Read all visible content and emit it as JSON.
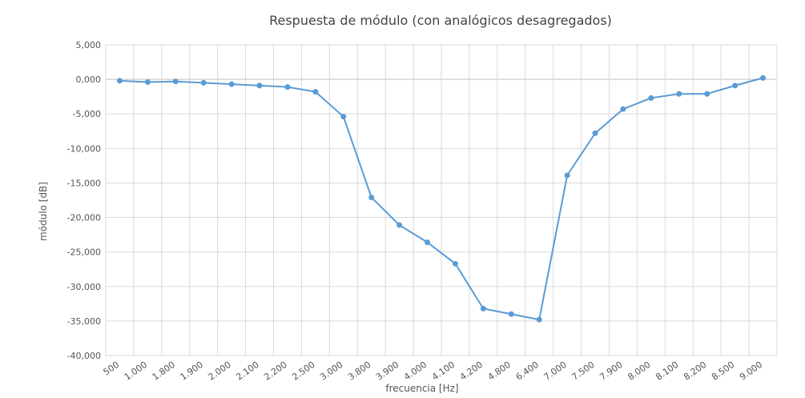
{
  "chart_data": {
    "type": "line",
    "title": "Respuesta de módulo (con analógicos desagregados)",
    "xlabel": "frecuencia [Hz]",
    "ylabel": "módulo [dB]",
    "categories": [
      "500",
      "1.000",
      "1.800",
      "1.900",
      "2.000",
      "2.100",
      "2.200",
      "2.500",
      "3.000",
      "3.800",
      "3.900",
      "4.000",
      "4.100",
      "4.200",
      "4.800",
      "6.400",
      "7.000",
      "7.500",
      "7.900",
      "8.000",
      "8.100",
      "8.200",
      "8.500",
      "9.000"
    ],
    "values": [
      -0.2,
      -0.4,
      -0.3,
      -0.5,
      -0.7,
      -0.9,
      -1.1,
      -1.8,
      -5.4,
      -17.1,
      -21.1,
      -23.6,
      -26.7,
      -33.2,
      -34.0,
      -34.8,
      -13.9,
      -7.8,
      -4.3,
      -2.7,
      -2.1,
      -2.1,
      -0.9,
      0.2
    ],
    "ylim": [
      -40,
      5
    ],
    "yticks": [
      "5,000",
      "0,000",
      "-5,000",
      "-10,000",
      "-15,000",
      "-20,000",
      "-25,000",
      "-30,000",
      "-35,000",
      "-40,000"
    ],
    "grid": true,
    "legend": "none",
    "series_color": "#5b9bd5"
  }
}
